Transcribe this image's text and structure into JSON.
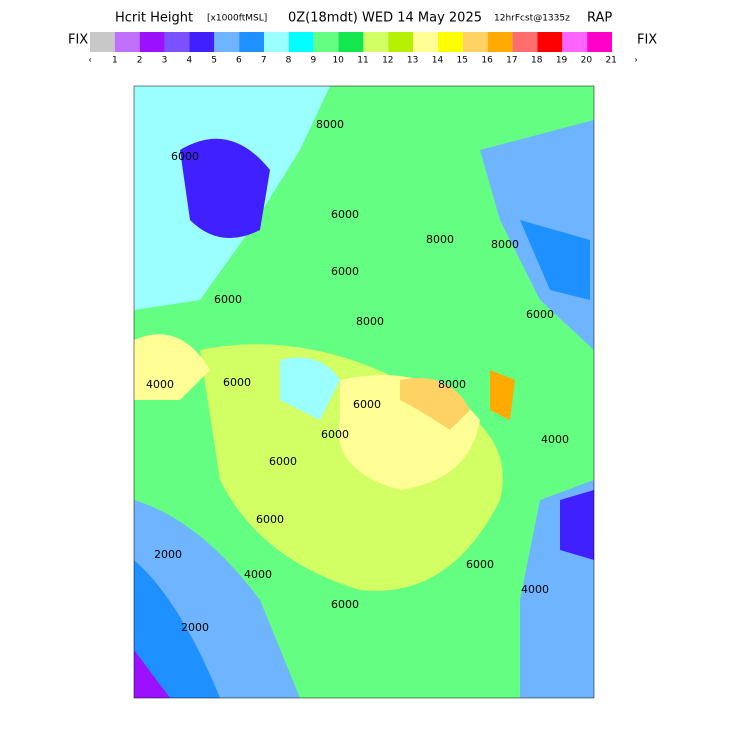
{
  "header": {
    "title": "Hcrit Height",
    "units": "[x1000ftMSL]",
    "time": "0Z(18mdt) WED 14 May 2025",
    "forecast": "12hrFcst@1335z",
    "model": "RAP"
  },
  "colorbar": {
    "left_label": "FIX",
    "right_label": "FIX",
    "colors": [
      "#c8c8c8",
      "#c070ff",
      "#9a10ff",
      "#7a50ff",
      "#4020ff",
      "#6eb4ff",
      "#1e90ff",
      "#9cffff",
      "#00ffff",
      "#64ff82",
      "#14e650",
      "#d2ff64",
      "#b4f000",
      "#ffff96",
      "#ffff00",
      "#ffd264",
      "#ffaa00",
      "#ff6e6e",
      "#ff0000",
      "#ff64ff",
      "#ff00c8"
    ],
    "labels": [
      "‹",
      "1",
      "2",
      "3",
      "4",
      "5",
      "6",
      "7",
      "8",
      "9",
      "10",
      "11",
      "12",
      "13",
      "14",
      "15",
      "16",
      "17",
      "18",
      "19",
      "20",
      "21",
      "›"
    ]
  },
  "contour_labels": [
    "6000",
    "8000",
    "6000",
    "8000",
    "6000",
    "6000",
    "8000",
    "8000",
    "6000",
    "4000",
    "6000",
    "6000",
    "8000",
    "6000",
    "4000",
    "6000",
    "6000",
    "2000",
    "4000",
    "6000",
    "2000",
    "4000",
    "6000"
  ]
}
